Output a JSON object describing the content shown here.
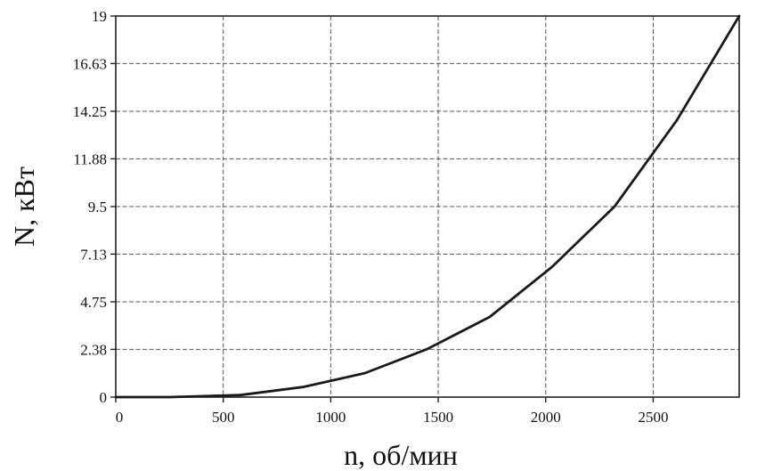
{
  "chart_data": {
    "type": "line",
    "title": "",
    "xlabel": "n, об/мин",
    "ylabel": "N, кВт",
    "xlim": [
      0,
      2900
    ],
    "ylim": [
      0,
      19
    ],
    "grid": true,
    "x_ticks": [
      {
        "value": 0,
        "label": "0"
      },
      {
        "value": 500,
        "label": "500"
      },
      {
        "value": 1000,
        "label": "1000"
      },
      {
        "value": 1500,
        "label": "1500"
      },
      {
        "value": 2000,
        "label": "2000"
      },
      {
        "value": 2500,
        "label": "2500"
      }
    ],
    "y_ticks": [
      {
        "value": 0,
        "label": "0"
      },
      {
        "value": 2.38,
        "label": "2.38"
      },
      {
        "value": 4.75,
        "label": "4.75"
      },
      {
        "value": 7.13,
        "label": "7.13"
      },
      {
        "value": 9.5,
        "label": "9.5"
      },
      {
        "value": 11.88,
        "label": "11.88"
      },
      {
        "value": 14.25,
        "label": "14.25"
      },
      {
        "value": 16.63,
        "label": "16.63"
      },
      {
        "value": 19,
        "label": "19"
      }
    ],
    "grid_x_values": [
      0,
      500,
      1000,
      1500,
      2000,
      2500,
      2900
    ],
    "series": [
      {
        "x": [
          0,
          250,
          580,
          870,
          1160,
          1450,
          1740,
          2030,
          2320,
          2610,
          2900
        ],
        "y": [
          0,
          0,
          0.1,
          0.5,
          1.2,
          2.4,
          4.0,
          6.5,
          9.5,
          13.8,
          19.0
        ],
        "color": "#1a1a1a"
      }
    ]
  }
}
